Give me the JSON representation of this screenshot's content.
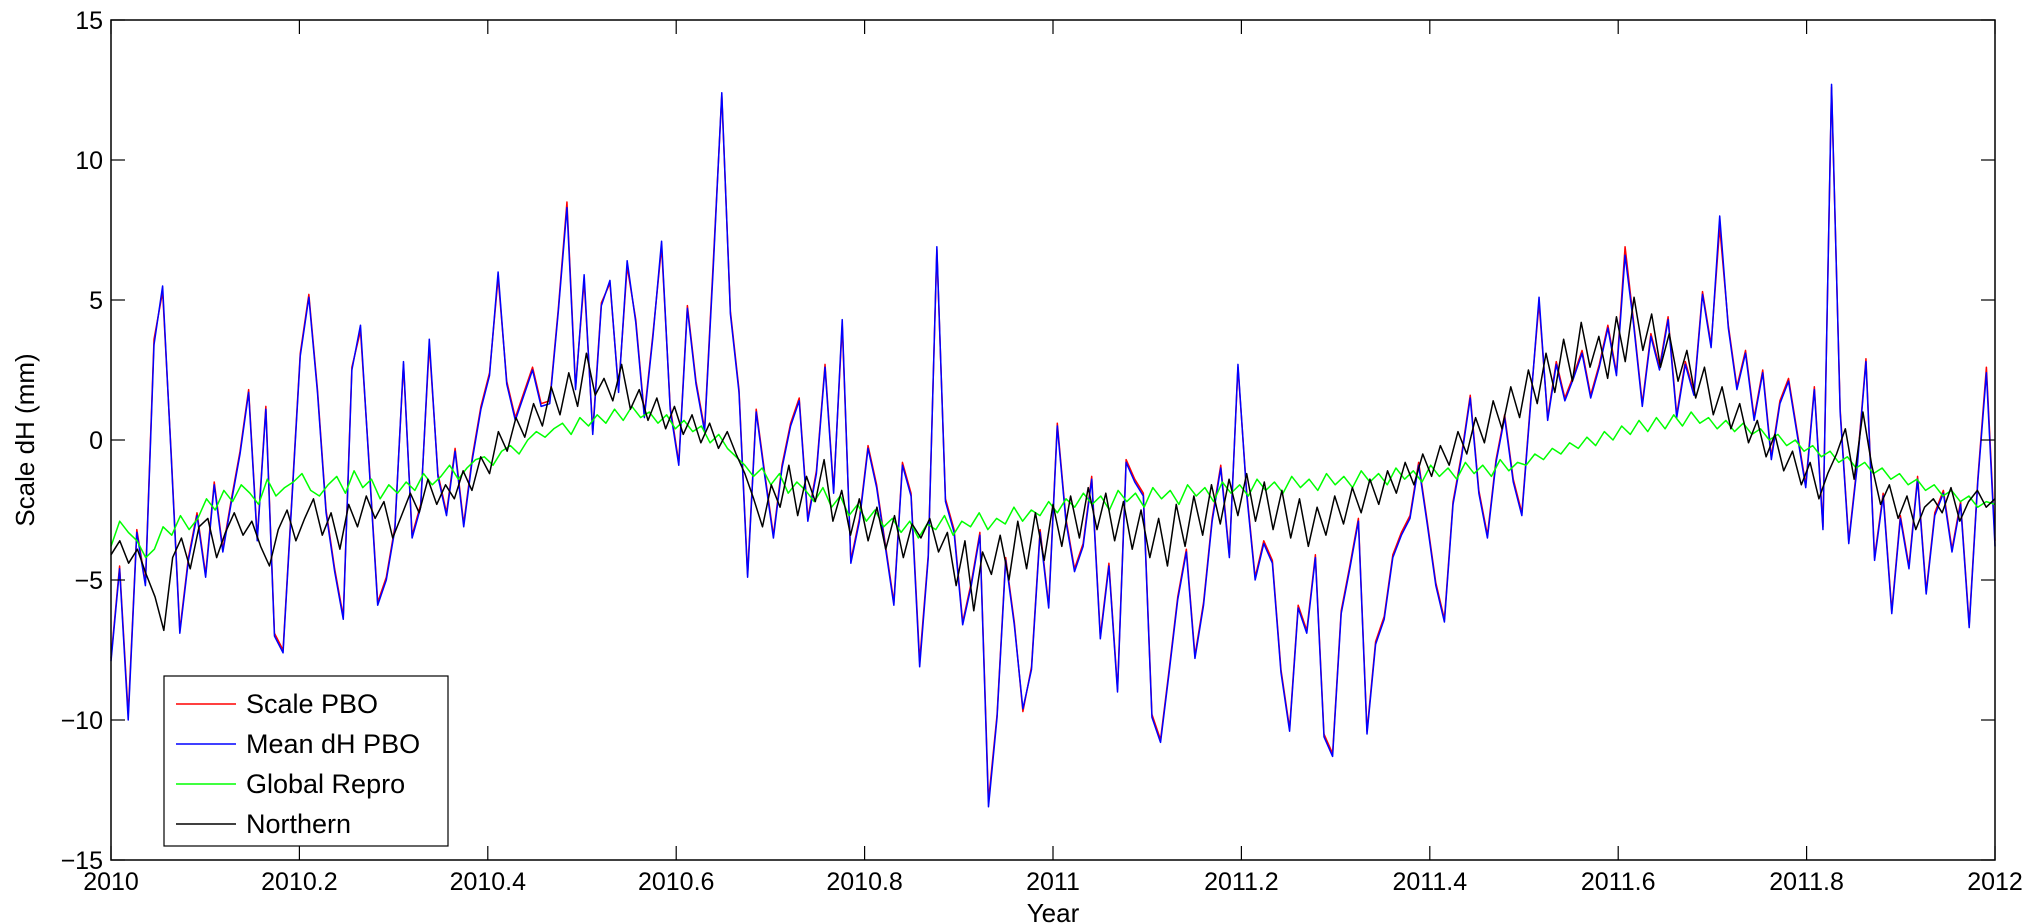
{
  "chart_data": {
    "type": "line",
    "title": "",
    "xlabel": "Year",
    "ylabel": "Scale dH (mm)",
    "xlim": [
      2010,
      2012
    ],
    "ylim": [
      -15,
      15
    ],
    "x_ticks": [
      2010,
      2010.2,
      2010.4,
      2010.6,
      2010.8,
      2011,
      2011.2,
      2011.4,
      2011.6,
      2011.8,
      2012
    ],
    "x_tick_labels": [
      "2010",
      "2010.2",
      "2010.4",
      "2010.6",
      "2010.8",
      "2011",
      "2011.2",
      "2011.4",
      "2011.6",
      "2011.8",
      "2012"
    ],
    "y_ticks": [
      -15,
      -10,
      -5,
      0,
      5,
      10,
      15
    ],
    "y_tick_labels": [
      "−15",
      "−10",
      "−5",
      "0",
      "5",
      "10",
      "15"
    ],
    "grid": false,
    "legend_position": "bottom-left",
    "x_start": 2010.0,
    "x_step": 0.01,
    "series": [
      {
        "name": "Scale PBO",
        "color": "#ff0000",
        "values": [
          -7.8,
          -4.5,
          -9.8,
          -3.2,
          -5.1,
          3.6,
          5.3,
          -0.5,
          -6.8,
          -4.2,
          -2.6,
          -4.8,
          -1.5,
          -3.9,
          -2.1,
          -0.4,
          1.8,
          -3.5,
          1.2,
          -6.9,
          -7.5,
          -2.2,
          3.1,
          5.2,
          1.8,
          -2.5,
          -4.6,
          -6.3,
          2.6,
          3.9,
          -0.8,
          -5.8,
          -4.9,
          -3.1,
          2.7,
          -3.4,
          -2.3,
          3.4,
          -1.2,
          -2.6,
          -0.3,
          -3.0,
          -0.6,
          1.2,
          2.4,
          5.8,
          2.1,
          0.8,
          1.7,
          2.6,
          1.3,
          1.4,
          4.7,
          8.5,
          1.9,
          5.7,
          0.3,
          4.9,
          5.6,
          1.8,
          6.2,
          4.3,
          0.9,
          3.8,
          6.9,
          1.2,
          -0.8,
          4.8,
          2.1,
          0.4,
          6.3,
          12.3,
          4.6,
          1.8,
          -4.8,
          1.1,
          -1.2,
          -3.4,
          -0.9,
          0.6,
          1.5,
          -2.8,
          -1.1,
          2.7,
          -1.8,
          4.1,
          -4.3,
          -2.8,
          -0.2,
          -1.6,
          -3.7,
          -5.8,
          -0.8,
          -1.9,
          -7.9,
          -4.1,
          6.8,
          -2.1,
          -3.2,
          -6.5,
          -5.1,
          -3.3,
          -12.9,
          -9.8,
          -4.2,
          -6.5,
          -9.7,
          -8.1,
          -3.2,
          -5.9,
          0.6,
          -2.8,
          -4.6,
          -3.7,
          -1.3,
          -7.0,
          -4.4,
          -8.9,
          -0.7,
          -1.4,
          -1.9,
          -9.8,
          -10.7,
          -8.2,
          -5.6,
          -3.9,
          -7.7,
          -5.8,
          -2.8,
          -0.9,
          -4.1,
          2.6,
          -1.8,
          -4.9,
          -3.6,
          -4.3,
          -8.2,
          -10.3,
          -5.9,
          -6.8,
          -4.1,
          -10.5,
          -11.2,
          -6.1,
          -4.5,
          -2.8,
          -10.4,
          -7.2,
          -6.3,
          -4.1,
          -3.3,
          -2.7,
          -0.8,
          -2.9,
          -5.1,
          -6.4,
          -2.2,
          -0.5,
          1.6,
          -1.8,
          -3.4,
          -0.7,
          0.9,
          -1.4,
          -2.6,
          1.3,
          4.9,
          0.8,
          2.8,
          1.5,
          2.3,
          3.2,
          1.6,
          2.7,
          4.1,
          2.4,
          6.9,
          4.2,
          1.3,
          3.8,
          2.6,
          4.4,
          0.9,
          2.8,
          1.7,
          5.3,
          3.4,
          7.6,
          4.1,
          1.9,
          3.2,
          0.8,
          2.5,
          -0.6,
          1.4,
          2.2,
          0.3,
          -1.6,
          1.9,
          -3.1,
          12.6,
          1.1,
          -3.6,
          -0.8,
          2.9,
          -4.2,
          -1.9,
          -6.1,
          -2.7,
          -4.5,
          -1.3,
          -5.4,
          -2.6,
          -1.8,
          -3.9,
          -2.2,
          -6.6,
          -1.4,
          2.6,
          -3.6
        ]
      },
      {
        "name": "Mean dH PBO",
        "color": "#0000ff",
        "values": [
          -7.9,
          -4.6,
          -10.0,
          -3.3,
          -5.2,
          3.4,
          5.5,
          -0.6,
          -6.9,
          -4.3,
          -2.7,
          -4.9,
          -1.6,
          -4.0,
          -2.2,
          -0.5,
          1.7,
          -3.6,
          1.1,
          -7.0,
          -7.6,
          -2.3,
          3.0,
          5.1,
          1.7,
          -2.6,
          -4.7,
          -6.4,
          2.5,
          4.1,
          -0.9,
          -5.9,
          -5.0,
          -3.2,
          2.8,
          -3.5,
          -2.4,
          3.6,
          -1.3,
          -2.7,
          -0.4,
          -3.1,
          -0.7,
          1.1,
          2.3,
          6.0,
          2.0,
          0.7,
          1.6,
          2.5,
          1.2,
          1.3,
          4.6,
          8.3,
          1.8,
          5.9,
          0.2,
          4.8,
          5.7,
          1.7,
          6.4,
          4.2,
          0.8,
          3.7,
          7.1,
          1.1,
          -0.9,
          4.7,
          2.0,
          0.3,
          6.1,
          12.4,
          4.5,
          1.7,
          -4.9,
          1.0,
          -1.3,
          -3.5,
          -1.0,
          0.5,
          1.4,
          -2.9,
          -1.2,
          2.6,
          -1.9,
          4.3,
          -4.4,
          -2.9,
          -0.3,
          -1.7,
          -3.8,
          -5.9,
          -0.9,
          -2.0,
          -8.1,
          -4.2,
          6.9,
          -2.2,
          -3.3,
          -6.6,
          -5.2,
          -3.4,
          -13.1,
          -9.9,
          -4.3,
          -6.6,
          -9.6,
          -8.2,
          -3.3,
          -6.0,
          0.5,
          -2.9,
          -4.7,
          -3.8,
          -1.4,
          -7.1,
          -4.5,
          -9.0,
          -0.8,
          -1.5,
          -2.0,
          -9.9,
          -10.8,
          -8.3,
          -5.7,
          -4.0,
          -7.8,
          -5.9,
          -2.9,
          -1.0,
          -4.2,
          2.7,
          -1.9,
          -5.0,
          -3.7,
          -4.4,
          -8.3,
          -10.4,
          -6.0,
          -6.9,
          -4.2,
          -10.6,
          -11.3,
          -6.2,
          -4.6,
          -2.9,
          -10.5,
          -7.3,
          -6.4,
          -4.2,
          -3.4,
          -2.8,
          -0.9,
          -3.0,
          -5.2,
          -6.5,
          -2.3,
          -0.6,
          1.5,
          -1.9,
          -3.5,
          -0.8,
          0.8,
          -1.5,
          -2.7,
          1.2,
          5.1,
          0.7,
          2.7,
          1.4,
          2.2,
          3.1,
          1.5,
          2.6,
          4.0,
          2.3,
          6.6,
          4.1,
          1.2,
          3.7,
          2.5,
          4.3,
          0.8,
          2.7,
          1.6,
          5.2,
          3.3,
          8.0,
          4.0,
          1.8,
          3.1,
          0.7,
          2.4,
          -0.7,
          1.3,
          2.1,
          0.2,
          -1.7,
          1.8,
          -3.2,
          12.7,
          1.0,
          -3.7,
          -0.9,
          2.8,
          -4.3,
          -2.0,
          -6.2,
          -2.8,
          -4.6,
          -1.4,
          -5.5,
          -2.7,
          -1.9,
          -4.0,
          -2.3,
          -6.7,
          -1.5,
          2.4,
          -3.8
        ]
      },
      {
        "name": "Global Repro",
        "color": "#00ff00",
        "values": [
          -3.8,
          -2.9,
          -3.3,
          -3.6,
          -4.2,
          -3.9,
          -3.1,
          -3.4,
          -2.7,
          -3.2,
          -2.8,
          -2.1,
          -2.5,
          -1.8,
          -2.2,
          -1.6,
          -1.9,
          -2.3,
          -1.4,
          -2.0,
          -1.7,
          -1.5,
          -1.2,
          -1.8,
          -2.0,
          -1.6,
          -1.3,
          -1.9,
          -1.1,
          -1.7,
          -1.4,
          -2.1,
          -1.6,
          -1.9,
          -1.5,
          -1.8,
          -1.2,
          -1.6,
          -1.3,
          -0.9,
          -1.4,
          -1.0,
          -0.7,
          -0.6,
          -0.9,
          -0.4,
          -0.2,
          -0.5,
          0.0,
          0.3,
          0.1,
          0.4,
          0.6,
          0.2,
          0.8,
          0.5,
          0.9,
          0.6,
          1.1,
          0.7,
          1.2,
          0.8,
          1.0,
          0.6,
          0.9,
          0.4,
          0.7,
          0.3,
          0.5,
          -0.1,
          0.2,
          -0.3,
          -0.6,
          -0.9,
          -1.3,
          -1.0,
          -1.6,
          -1.2,
          -1.9,
          -1.5,
          -1.8,
          -2.2,
          -1.7,
          -2.4,
          -2.0,
          -2.7,
          -2.3,
          -2.9,
          -2.5,
          -3.1,
          -2.8,
          -3.3,
          -2.9,
          -3.5,
          -3.0,
          -3.2,
          -2.7,
          -3.4,
          -2.9,
          -3.1,
          -2.6,
          -3.2,
          -2.8,
          -3.0,
          -2.4,
          -2.9,
          -2.5,
          -2.7,
          -2.2,
          -2.6,
          -2.1,
          -2.4,
          -1.9,
          -2.3,
          -2.0,
          -2.5,
          -1.8,
          -2.2,
          -1.9,
          -2.4,
          -1.7,
          -2.1,
          -1.8,
          -2.3,
          -1.6,
          -2.0,
          -1.7,
          -2.2,
          -1.5,
          -1.9,
          -1.6,
          -2.0,
          -1.4,
          -1.8,
          -1.5,
          -1.9,
          -1.3,
          -1.7,
          -1.4,
          -1.8,
          -1.2,
          -1.6,
          -1.3,
          -1.7,
          -1.1,
          -1.5,
          -1.2,
          -1.6,
          -1.0,
          -1.4,
          -1.1,
          -1.5,
          -0.9,
          -1.3,
          -1.0,
          -1.4,
          -0.8,
          -1.2,
          -0.9,
          -1.3,
          -0.7,
          -1.1,
          -0.8,
          -0.9,
          -0.5,
          -0.7,
          -0.3,
          -0.5,
          -0.1,
          -0.3,
          0.1,
          -0.2,
          0.3,
          0.0,
          0.5,
          0.2,
          0.7,
          0.3,
          0.8,
          0.4,
          0.9,
          0.5,
          1.0,
          0.6,
          0.8,
          0.4,
          0.7,
          0.3,
          0.6,
          0.2,
          0.4,
          0.0,
          0.2,
          -0.2,
          0.0,
          -0.4,
          -0.2,
          -0.6,
          -0.4,
          -0.8,
          -0.6,
          -1.0,
          -0.8,
          -1.2,
          -1.0,
          -1.4,
          -1.2,
          -1.6,
          -1.4,
          -1.8,
          -1.6,
          -2.0,
          -1.8,
          -2.2,
          -2.0,
          -2.4,
          -2.2,
          -2.3
        ]
      },
      {
        "name": "Northern",
        "color": "#000000",
        "values": [
          -4.1,
          -3.6,
          -4.4,
          -3.9,
          -4.8,
          -5.6,
          -6.8,
          -4.2,
          -3.5,
          -4.6,
          -3.1,
          -2.8,
          -4.2,
          -3.3,
          -2.6,
          -3.4,
          -2.9,
          -3.8,
          -4.5,
          -3.2,
          -2.5,
          -3.6,
          -2.8,
          -2.1,
          -3.4,
          -2.6,
          -3.9,
          -2.3,
          -3.1,
          -2.0,
          -2.8,
          -2.2,
          -3.5,
          -2.7,
          -1.9,
          -2.6,
          -1.4,
          -2.3,
          -1.6,
          -2.1,
          -1.1,
          -1.8,
          -0.6,
          -1.2,
          0.3,
          -0.4,
          0.8,
          0.1,
          1.3,
          0.5,
          1.9,
          0.9,
          2.4,
          1.2,
          3.1,
          1.6,
          2.2,
          1.4,
          2.7,
          1.1,
          1.8,
          0.7,
          1.5,
          0.4,
          1.2,
          0.2,
          0.9,
          -0.1,
          0.6,
          -0.3,
          0.3,
          -0.5,
          -1.2,
          -2.1,
          -3.1,
          -1.6,
          -2.4,
          -0.9,
          -2.7,
          -1.3,
          -2.2,
          -0.7,
          -2.9,
          -1.8,
          -3.4,
          -2.1,
          -3.6,
          -2.4,
          -3.9,
          -2.7,
          -4.2,
          -3.0,
          -3.5,
          -2.8,
          -4.0,
          -3.3,
          -5.2,
          -3.6,
          -6.1,
          -4.0,
          -4.8,
          -3.4,
          -5.0,
          -2.9,
          -4.6,
          -2.6,
          -4.3,
          -2.3,
          -3.8,
          -2.0,
          -3.5,
          -1.7,
          -3.2,
          -1.9,
          -3.6,
          -2.2,
          -3.9,
          -2.5,
          -4.2,
          -2.8,
          -4.5,
          -2.3,
          -3.8,
          -2.0,
          -3.4,
          -1.6,
          -3.0,
          -1.4,
          -2.7,
          -1.2,
          -2.9,
          -1.5,
          -3.2,
          -1.8,
          -3.5,
          -2.1,
          -3.8,
          -2.4,
          -3.4,
          -2.0,
          -3.0,
          -1.7,
          -2.6,
          -1.4,
          -2.3,
          -1.1,
          -1.9,
          -0.8,
          -1.6,
          -0.5,
          -1.3,
          -0.2,
          -0.9,
          0.3,
          -0.5,
          0.8,
          -0.1,
          1.4,
          0.4,
          1.9,
          0.8,
          2.5,
          1.3,
          3.1,
          1.7,
          3.6,
          2.1,
          4.2,
          2.6,
          3.7,
          2.2,
          4.4,
          2.8,
          5.1,
          3.2,
          4.5,
          2.6,
          3.8,
          2.1,
          3.2,
          1.5,
          2.6,
          0.9,
          1.9,
          0.4,
          1.3,
          -0.1,
          0.7,
          -0.6,
          0.2,
          -1.1,
          -0.4,
          -1.6,
          -0.8,
          -2.1,
          -1.2,
          -0.5,
          0.4,
          -1.4,
          1.0,
          -0.9,
          -2.3,
          -1.6,
          -2.8,
          -2.0,
          -3.2,
          -2.4,
          -2.1,
          -2.6,
          -1.7,
          -2.9,
          -2.2,
          -1.8,
          -2.4,
          -2.1
        ]
      }
    ]
  }
}
